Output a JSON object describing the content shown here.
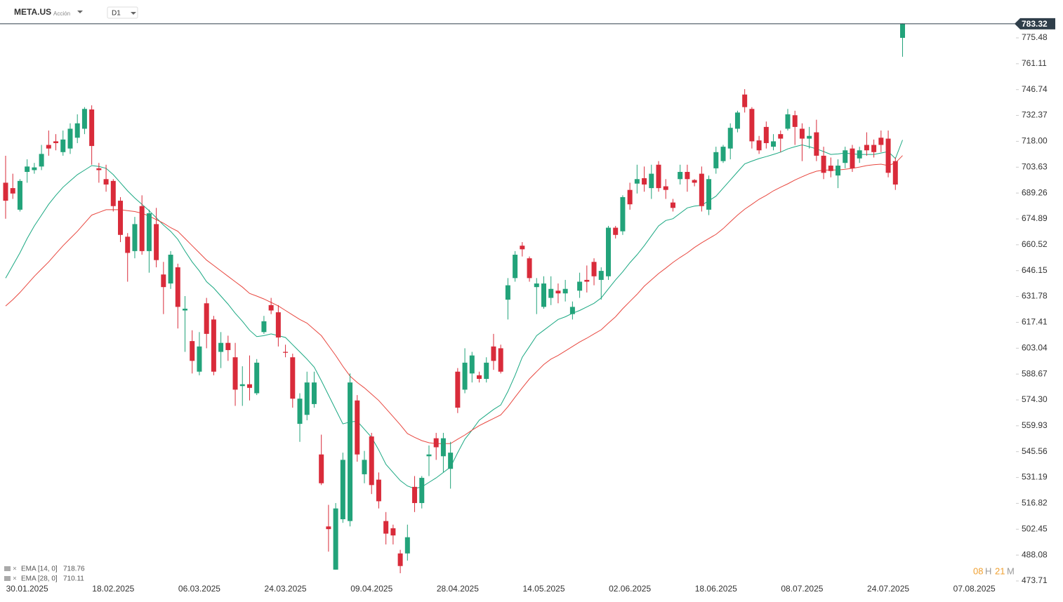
{
  "header": {
    "symbol": "META.US",
    "asset_type": "Acción",
    "timeframe": "D1"
  },
  "countdown": {
    "hours": "08",
    "hours_unit": "H",
    "minutes": "21",
    "minutes_unit": "M"
  },
  "chart_data": {
    "type": "candlestick",
    "up_color": "#22a37a",
    "down_color": "#d92b3a",
    "categories": [
      null,
      null,
      null,
      "30.01.2025",
      null,
      null,
      null,
      null,
      null,
      null,
      null,
      null,
      null,
      null,
      null,
      "18.02.2025",
      null,
      null,
      null,
      null,
      null,
      null,
      null,
      null,
      null,
      null,
      null,
      "06.03.2025",
      null,
      null,
      null,
      null,
      null,
      null,
      null,
      null,
      null,
      null,
      null,
      "24.03.2025",
      null,
      null,
      null,
      null,
      null,
      null,
      null,
      null,
      null,
      null,
      null,
      "09.04.2025",
      null,
      null,
      null,
      null,
      null,
      null,
      null,
      null,
      null,
      null,
      null,
      "28.04.2025",
      null,
      null,
      null,
      null,
      null,
      null,
      null,
      null,
      null,
      null,
      null,
      "14.05.2025",
      null,
      null,
      null,
      null,
      null,
      null,
      null,
      null,
      null,
      null,
      null,
      "02.06.2025",
      null,
      null,
      null,
      null,
      null,
      null,
      null,
      null,
      null,
      null,
      null,
      "18.06.2025",
      null,
      null,
      null,
      null,
      null,
      null,
      null,
      null,
      null,
      null,
      null,
      "08.07.2025",
      null,
      null,
      null,
      null,
      null,
      null,
      null,
      null,
      null,
      null,
      null,
      "24.07.2025",
      null,
      null,
      null,
      null,
      null,
      null,
      null,
      null,
      null,
      null,
      null,
      "07.08.2025"
    ],
    "open": [
      695,
      692,
      680,
      701,
      702,
      704,
      716,
      718,
      712,
      714,
      720,
      725,
      735.7,
      703,
      697,
      696,
      685,
      665,
      657,
      682,
      657,
      672,
      644,
      639,
      648,
      624,
      607,
      590,
      628,
      619,
      601,
      606,
      598,
      582,
      583,
      578,
      612,
      627,
      623,
      601,
      598,
      561,
      566,
      572,
      544,
      504,
      480,
      508,
      507,
      574,
      533,
      554,
      530,
      507,
      503,
      489,
      489,
      526,
      517,
      543,
      553,
      543,
      536,
      590,
      580,
      589,
      588,
      586,
      604,
      603,
      630,
      642,
      660,
      653,
      637,
      626,
      631,
      635,
      633.5,
      622,
      635,
      641,
      651,
      641,
      643,
      670,
      668,
      691,
      694.5,
      697.5,
      692,
      705,
      693,
      684,
      697,
      701,
      696.5,
      700,
      680,
      703,
      707,
      714,
      725,
      744,
      736,
      718.5,
      726,
      715,
      722,
      725,
      732.5,
      725,
      719.5,
      723,
      710,
      704.5,
      699,
      706,
      714,
      708.5,
      716,
      716,
      720,
      719.5,
      707,
      775.5,
      null,
      null,
      null,
      null,
      null,
      null,
      null,
      null,
      null,
      null
    ],
    "high": [
      710,
      700,
      697,
      708,
      706,
      716,
      724,
      722,
      724,
      728,
      733,
      737,
      738,
      706,
      705,
      697,
      687,
      667,
      676,
      688,
      680,
      681,
      651,
      657,
      650,
      632,
      613,
      612,
      631,
      621,
      612,
      610,
      606,
      593,
      599,
      597,
      621,
      631,
      627,
      605,
      600,
      578,
      590,
      590,
      555,
      516,
      517,
      545,
      589,
      577,
      546,
      556,
      534,
      512,
      505,
      491,
      505,
      532,
      532,
      549,
      556,
      556,
      551,
      592,
      603,
      601,
      590,
      598,
      611,
      605,
      642,
      657,
      662,
      654,
      642,
      643,
      643,
      639,
      641,
      629,
      645,
      649,
      653,
      648,
      671,
      671,
      688,
      695,
      705,
      704,
      705,
      707,
      697,
      686,
      705,
      705,
      697,
      704,
      699,
      715,
      716,
      728,
      735,
      747,
      737,
      721,
      729,
      722,
      724,
      736,
      735,
      728,
      726,
      730,
      715,
      709,
      708,
      715,
      716,
      715,
      723,
      719,
      724,
      724,
      709,
      783.5,
      null,
      null,
      null,
      null,
      null,
      null,
      null,
      null,
      null,
      null
    ],
    "low": [
      675,
      686,
      679,
      695,
      700,
      702,
      710,
      713,
      710,
      711,
      717,
      722,
      705,
      695,
      690,
      679,
      662,
      640,
      653,
      655,
      645,
      648,
      622,
      636,
      614,
      601,
      589,
      588,
      603,
      588,
      592,
      596,
      571,
      571,
      574,
      577,
      611,
      622,
      604,
      598,
      570,
      551,
      563,
      570,
      527,
      490,
      480,
      506,
      504,
      540,
      528,
      522,
      514,
      494,
      494,
      478,
      485,
      512,
      514,
      532,
      541,
      534,
      525,
      567,
      578,
      584,
      584,
      584,
      591,
      589,
      619,
      640,
      654,
      640,
      622,
      625,
      627,
      628,
      629,
      619,
      631,
      634,
      638,
      630,
      641,
      664,
      666,
      680,
      689,
      690,
      686,
      690,
      686,
      679,
      694,
      690,
      693,
      679,
      677,
      700,
      706,
      708,
      723,
      734,
      714,
      711,
      714,
      713,
      712,
      724,
      716,
      707,
      714,
      707,
      697,
      698,
      692,
      703,
      701,
      706,
      710,
      709,
      712,
      698,
      691,
      765,
      null,
      null,
      null,
      null,
      null,
      null,
      null,
      null,
      null,
      null
    ],
    "close": [
      685,
      689,
      696,
      704,
      703.5,
      711,
      714,
      717,
      719,
      725,
      728,
      736,
      715.4,
      702,
      694,
      682,
      666,
      656,
      672,
      657,
      678,
      652,
      637,
      655,
      626,
      625,
      596,
      604,
      611,
      590,
      606,
      602,
      580,
      583,
      581,
      595,
      618,
      624,
      609,
      600.5,
      575,
      575,
      584,
      584,
      528,
      502.5,
      514,
      541,
      584,
      544,
      541,
      527,
      518,
      500,
      499,
      482,
      498,
      517,
      531,
      544,
      548,
      553,
      545,
      570,
      595,
      599,
      586,
      595,
      596,
      590,
      638,
      655,
      658,
      642,
      639,
      639,
      636,
      633.5,
      636,
      626,
      640,
      640,
      643,
      646,
      670,
      666,
      687,
      683,
      697,
      694,
      700,
      692,
      691,
      681,
      701,
      697,
      695,
      682,
      697,
      712,
      715,
      725.5,
      734,
      737,
      718,
      713,
      717,
      718,
      719.5,
      733,
      726,
      719.5,
      721,
      710,
      700.5,
      701.5,
      704.5,
      713,
      703,
      713,
      713,
      712,
      716,
      700.5,
      694,
      783.32,
      null,
      null,
      null,
      null,
      null,
      null,
      null,
      null,
      null,
      null
    ],
    "series": [
      {
        "name": "EMA [14, 0]",
        "color": "#1aa882",
        "values": [
          642,
          649,
          656,
          664,
          671,
          677,
          683,
          688,
          692.5,
          696,
          699.5,
          702,
          704.5,
          704,
          703,
          699.5,
          695,
          690.5,
          686.5,
          683,
          679.5,
          675.5,
          671.5,
          668,
          663.5,
          657,
          651,
          646,
          640,
          636.5,
          632,
          627.5,
          622.5,
          618,
          613,
          609.5,
          610,
          611,
          610,
          609,
          605,
          601,
          597,
          592.5,
          585,
          577,
          569,
          561,
          562,
          562.5,
          558,
          553.5,
          546.5,
          538.5,
          534,
          529.5,
          526.5,
          525,
          526,
          528.5,
          531,
          534,
          537,
          545,
          552.5,
          557.5,
          563,
          566,
          569,
          571.5,
          579,
          588,
          598,
          604,
          610,
          613,
          616,
          619,
          620.5,
          622.5,
          624,
          626,
          628,
          631,
          636,
          641,
          645.5,
          650.5,
          655,
          660,
          665.5,
          671,
          674,
          675,
          678,
          681,
          682,
          682.5,
          685,
          687.5,
          692,
          696.5,
          701,
          705.5,
          707,
          708.4,
          709.5,
          710.7,
          712,
          713.8,
          715,
          716,
          715,
          713.8,
          712.3,
          710.7,
          711,
          711.5,
          711,
          710.7,
          710.7,
          710.7,
          711.5,
          712.3,
          708.4,
          718.76,
          null,
          null,
          null,
          null,
          null,
          null,
          null,
          null,
          null,
          null
        ]
      },
      {
        "name": "EMA [28, 0]",
        "color": "#e8473f",
        "values": [
          626.5,
          630,
          634,
          638.5,
          643,
          647,
          651,
          655.5,
          660,
          664,
          668,
          672.5,
          677,
          678.5,
          680,
          680,
          680,
          679.5,
          679,
          678,
          676.5,
          674.5,
          672.5,
          670,
          668,
          664,
          660,
          656,
          652,
          649,
          646,
          643,
          640,
          637,
          633.5,
          632,
          630.4,
          628.5,
          626.5,
          624,
          621.5,
          619,
          617,
          613.5,
          610,
          604.5,
          599,
          593,
          587.5,
          584,
          581,
          577.5,
          574,
          569.5,
          565,
          560.5,
          555.6,
          553.5,
          551.7,
          550.5,
          550,
          550,
          550,
          552.5,
          554.8,
          557.5,
          560,
          562,
          564,
          566,
          570.5,
          575.8,
          581,
          586,
          590,
          594,
          597,
          599,
          601.5,
          604,
          606.5,
          608.6,
          611,
          613.3,
          617,
          620.5,
          625,
          629,
          633,
          637.5,
          641,
          644.5,
          647.5,
          650.7,
          653.5,
          656,
          659,
          661.6,
          664,
          666.3,
          669.5,
          673.3,
          677,
          680.3,
          683,
          685.8,
          688,
          690.5,
          692.5,
          694.4,
          696.5,
          698.3,
          700,
          701.4,
          702,
          702.1,
          702.1,
          702.5,
          703,
          703.7,
          704.5,
          705,
          705.3,
          704.5,
          706,
          710.11,
          null,
          null,
          null,
          null,
          null,
          null,
          null,
          null,
          null,
          null
        ]
      }
    ],
    "ylim": [
      472.93,
      792.63
    ],
    "yticks": [
      473.71,
      488.08,
      502.45,
      516.82,
      531.19,
      545.56,
      559.93,
      {
        "value": 574.3,
        "label": "574.30"
      },
      588.67,
      603.04,
      617.41,
      631.78,
      646.15,
      660.52,
      674.89,
      689.26,
      703.63,
      {
        "value": 718,
        "label": "718.00"
      },
      732.37,
      746.74,
      761.11,
      775.48
    ]
  }
}
